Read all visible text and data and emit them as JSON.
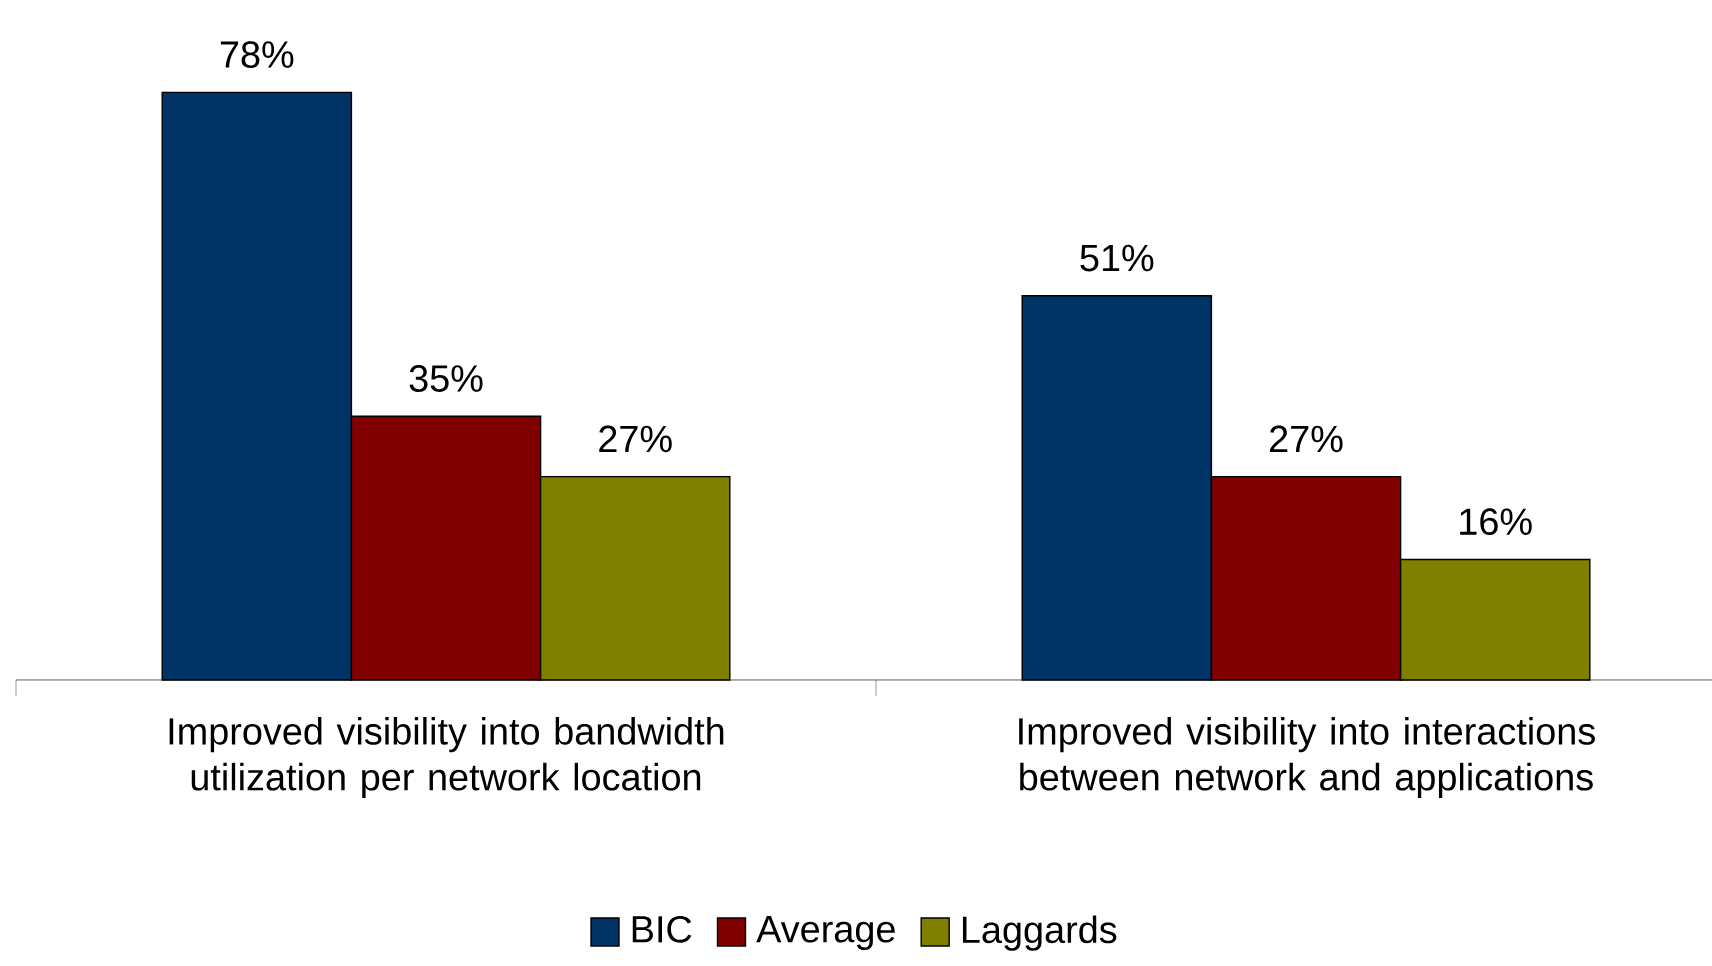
{
  "chart_data": {
    "type": "bar",
    "categories": [
      "Improved visibility into bandwidth utilization per network location",
      "Improved visibility into interactions between network and applications"
    ],
    "series": [
      {
        "name": "BIC",
        "color": "#003366",
        "values": [
          78,
          51
        ],
        "value_labels": [
          "78%",
          "51%"
        ]
      },
      {
        "name": "Average",
        "color": "#800000",
        "values": [
          35,
          27
        ],
        "value_labels": [
          "35%",
          "27%"
        ]
      },
      {
        "name": "Laggards",
        "color": "#808000",
        "values": [
          27,
          16
        ],
        "value_labels": [
          "27%",
          "16%"
        ]
      }
    ],
    "legend": "bottom"
  }
}
